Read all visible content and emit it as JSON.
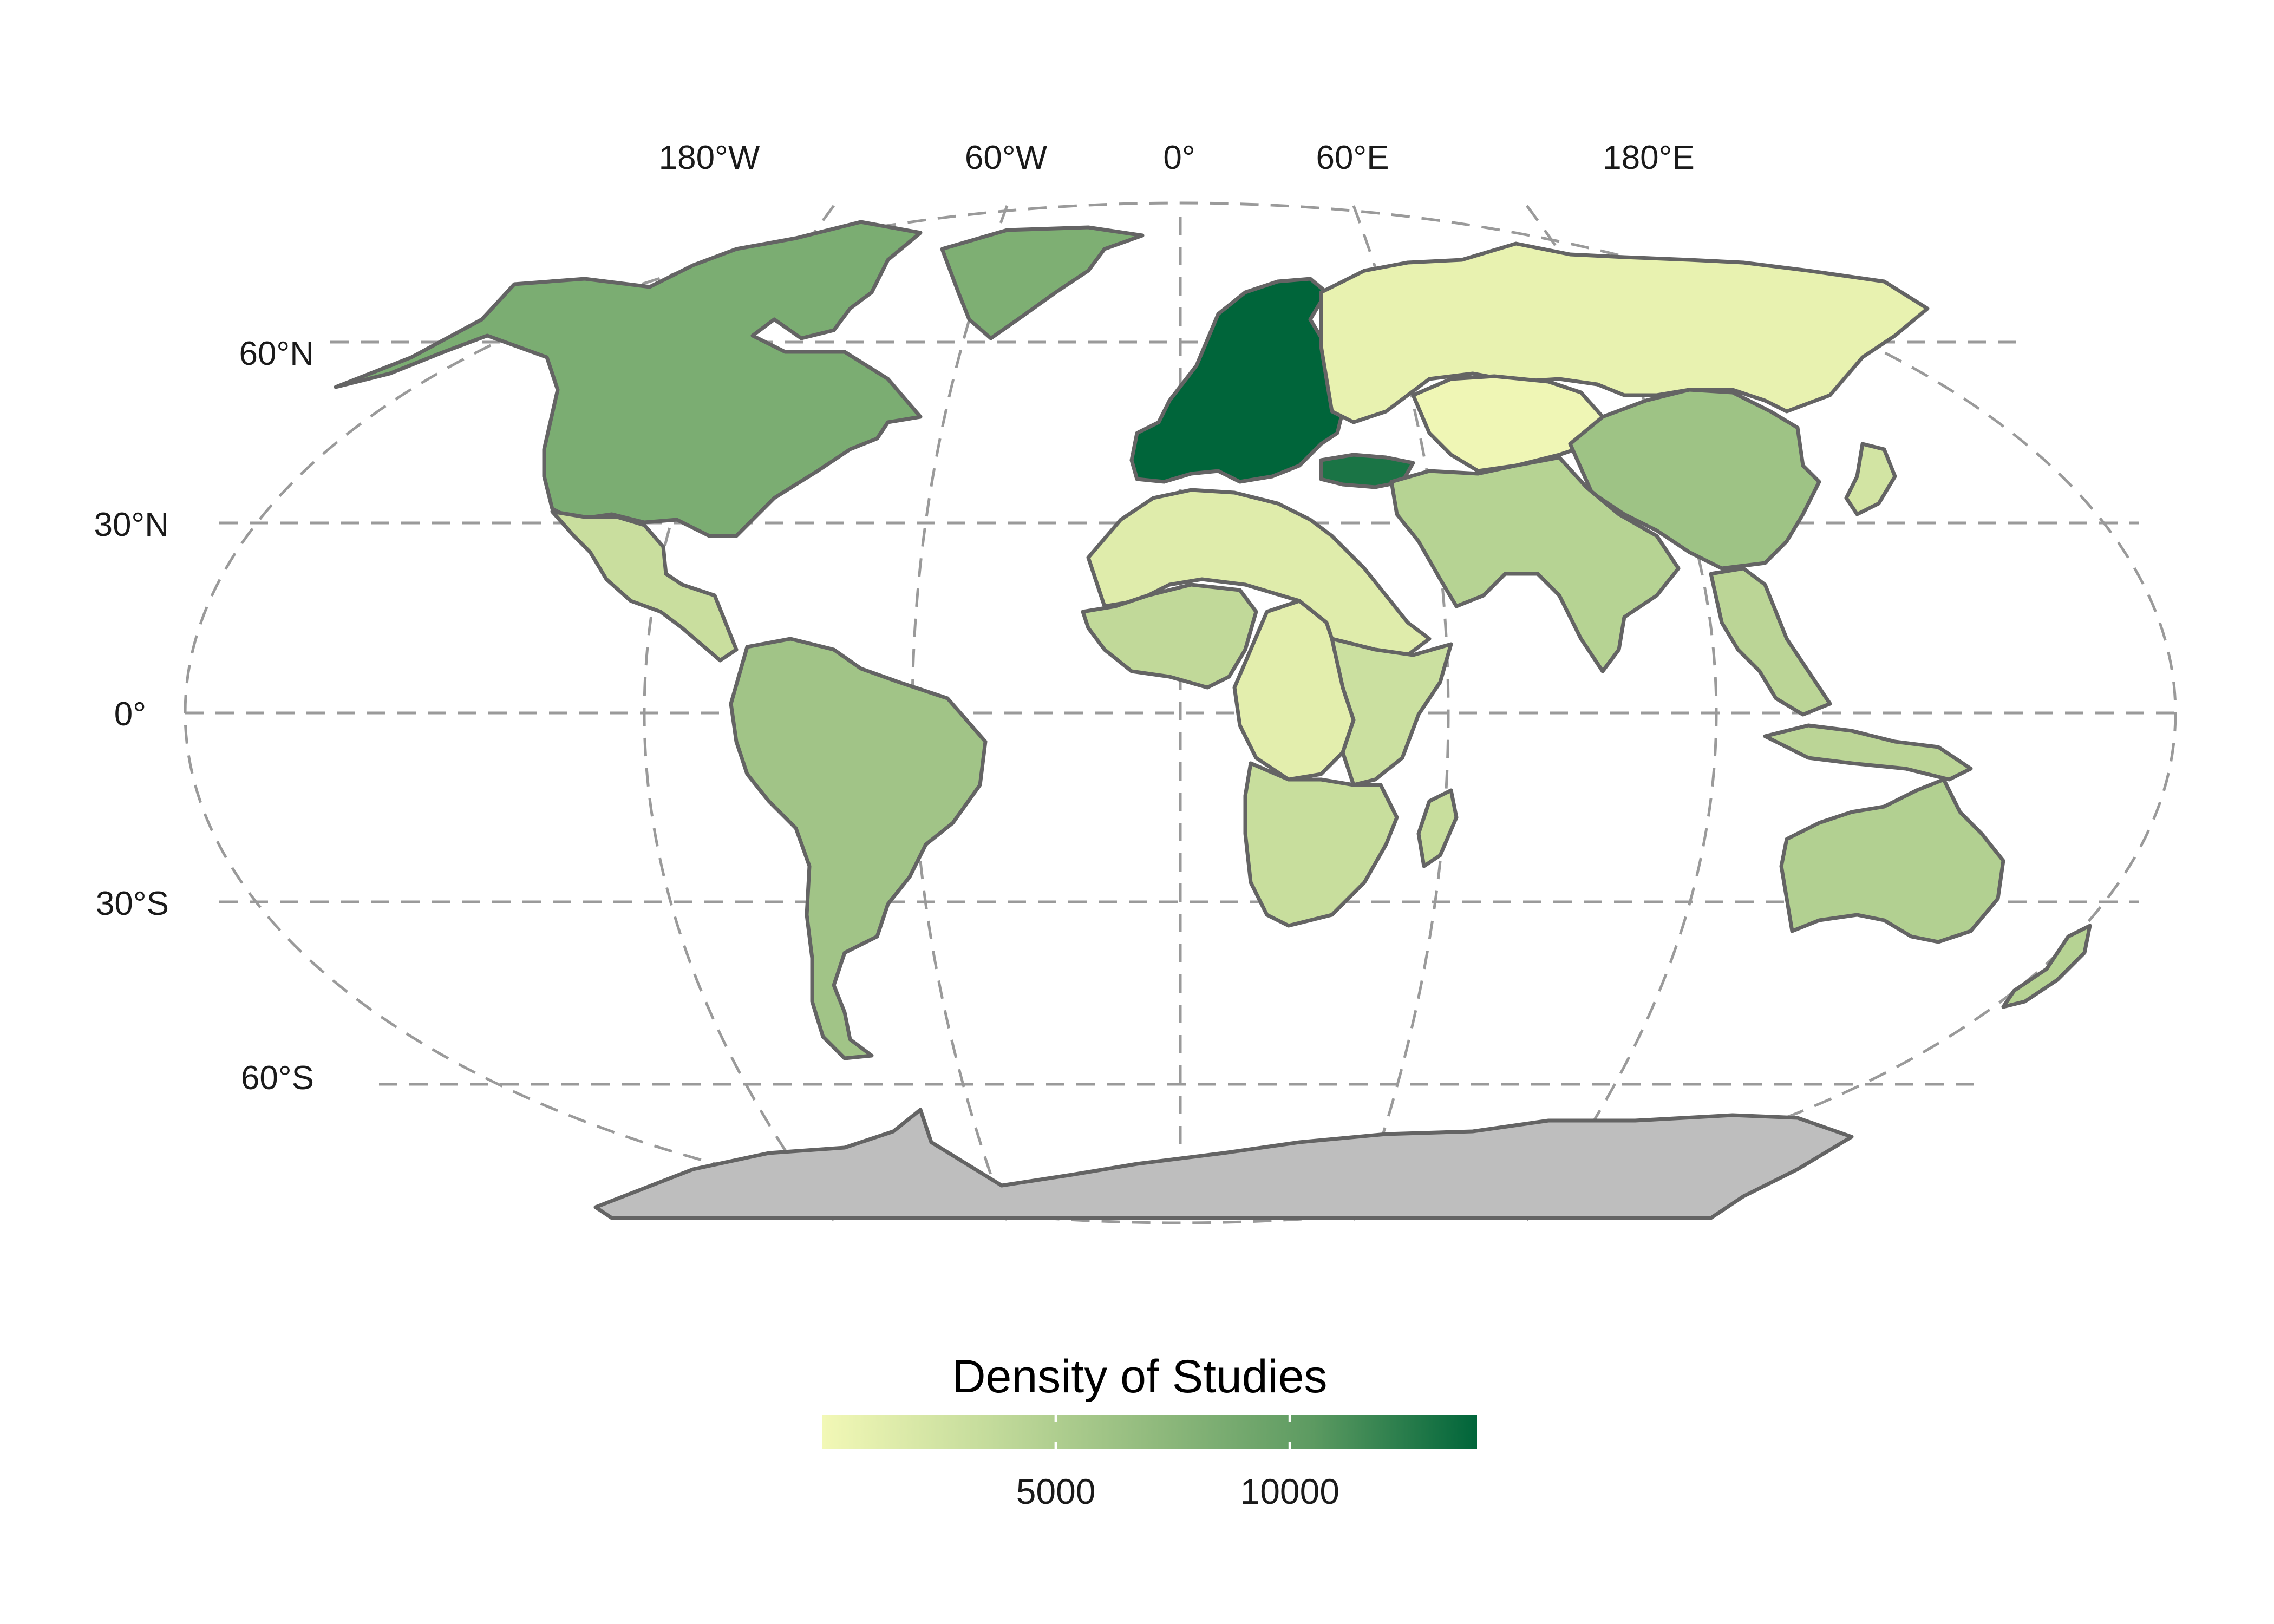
{
  "legend": {
    "title": "Density of Studies",
    "ticks": [
      5000,
      10000
    ],
    "range": [
      0,
      14000
    ],
    "colors": [
      "#f2f8b6",
      "#c5dc9c",
      "#92bb7e",
      "#5c9a61",
      "#00653a"
    ]
  },
  "graticule": {
    "lon_labels": [
      "180°W",
      "60°W",
      "0°",
      "60°E",
      "180°E"
    ],
    "lat_labels": [
      "60°N",
      "30°N",
      "0°",
      "30°S",
      "60°S"
    ]
  },
  "regions": [
    {
      "name": "North America",
      "density": 8500
    },
    {
      "name": "Greenland",
      "density": 8300
    },
    {
      "name": "Central America",
      "density": 3200
    },
    {
      "name": "South America",
      "density": 6000
    },
    {
      "name": "Europe",
      "density": 14000
    },
    {
      "name": "Turkey",
      "density": 13000
    },
    {
      "name": "Russia",
      "density": 800
    },
    {
      "name": "Kazakhstan",
      "density": 200
    },
    {
      "name": "China",
      "density": 6200
    },
    {
      "name": "Middle East and South Asia",
      "density": 4500
    },
    {
      "name": "North Africa",
      "density": 1500
    },
    {
      "name": "West Africa",
      "density": 3800
    },
    {
      "name": "Central Africa",
      "density": 1200
    },
    {
      "name": "East Africa",
      "density": 3000
    },
    {
      "name": "Southern Africa",
      "density": 3300
    },
    {
      "name": "Southeast Asia",
      "density": 4200
    },
    {
      "name": "Australia",
      "density": 4800
    },
    {
      "name": "New Zealand",
      "density": 4500
    },
    {
      "name": "Antarctica",
      "density": null
    }
  ],
  "colors": {
    "no_data": "#bebebe",
    "border": "#646464",
    "graticule": "#9a9a9a"
  }
}
